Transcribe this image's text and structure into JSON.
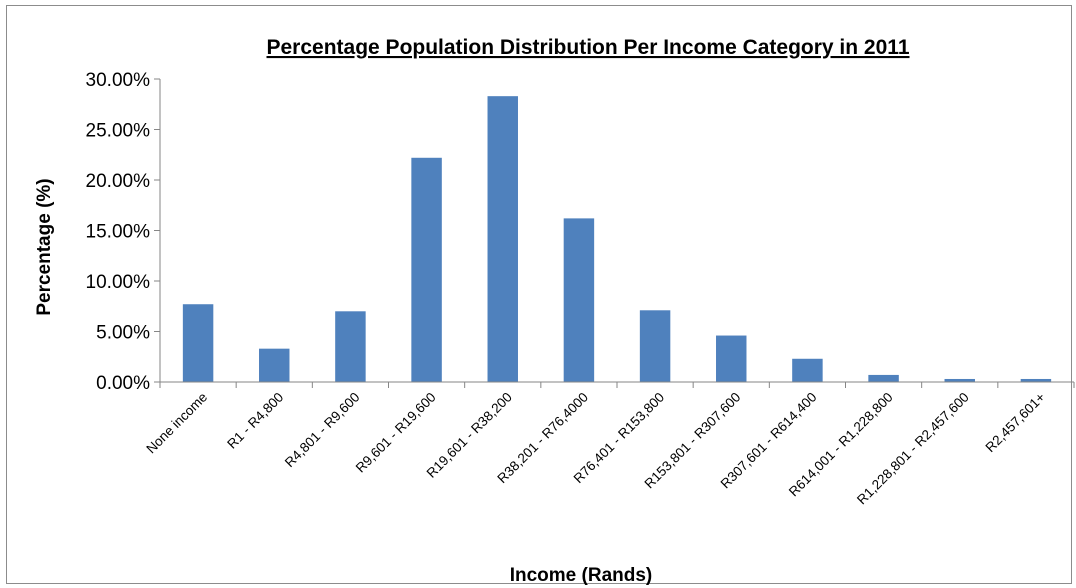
{
  "chart_data": {
    "type": "bar",
    "title": "Percentage Population Distribution Per Income Category in 2011",
    "xlabel": "Income (Rands)",
    "ylabel": "Percentage (%)",
    "ylim": [
      0,
      30
    ],
    "yticks": [
      "0.00%",
      "5.00%",
      "10.00%",
      "15.00%",
      "20.00%",
      "25.00%",
      "30.00%"
    ],
    "grid": false,
    "legend": "none",
    "bar_color": "#4F81BD",
    "categories": [
      "None income",
      "R1 - R4,800",
      "R4,801 - R9,600",
      "R9,601 - R19,600",
      "R19,601 - R38,200",
      "R38,201 - R76,4000",
      "R76,401 - R153,800",
      "R153,801 - R307,600",
      "R307,601 - R614,400",
      "R614,001 - R1,228,800",
      "R1,228,801 - R2,457,600",
      "R2,457,601+"
    ],
    "values": [
      7.7,
      3.3,
      7.0,
      22.2,
      28.3,
      16.2,
      7.1,
      4.6,
      2.3,
      0.7,
      0.3,
      0.3
    ]
  }
}
